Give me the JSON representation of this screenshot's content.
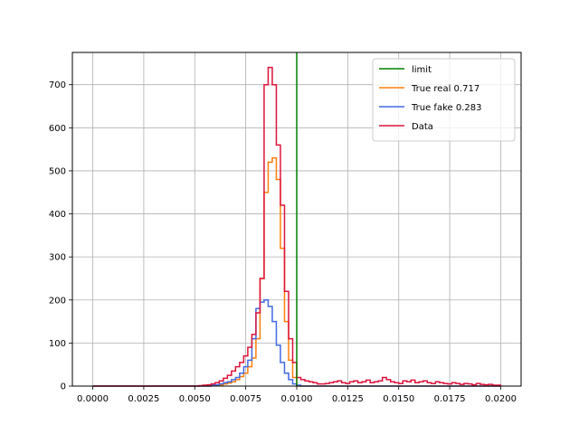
{
  "chart_data": {
    "type": "histogram",
    "title": "",
    "xlabel": "",
    "ylabel": "",
    "xlim": [
      -0.001,
      0.021
    ],
    "ylim": [
      0,
      775
    ],
    "grid": true,
    "legend_position": "top-right",
    "x_ticks": [
      0.0,
      0.0025,
      0.005,
      0.0075,
      0.01,
      0.0125,
      0.015,
      0.0175,
      0.02
    ],
    "x_tick_labels": [
      "0.0000",
      "0.0025",
      "0.0050",
      "0.0075",
      "0.0100",
      "0.0125",
      "0.0150",
      "0.0175",
      "0.0200"
    ],
    "y_ticks": [
      0,
      100,
      200,
      300,
      400,
      500,
      600,
      700
    ],
    "y_tick_labels": [
      "0",
      "100",
      "200",
      "300",
      "400",
      "500",
      "600",
      "700"
    ],
    "bins": {
      "start": 0.0,
      "end": 0.02,
      "count": 100
    },
    "vline": {
      "name": "limit",
      "x": 0.01,
      "color": "#008000"
    },
    "series": [
      {
        "name": "True real 0.717",
        "color": "#ff7f0e",
        "counts": [
          0,
          0,
          0,
          0,
          0,
          0,
          0,
          0,
          0,
          0,
          0,
          0,
          0,
          0,
          0,
          0,
          0,
          0,
          0,
          0,
          0,
          0,
          0,
          0,
          0,
          0,
          0,
          0,
          0,
          1,
          2,
          3,
          5,
          7,
          10,
          15,
          22,
          30,
          45,
          65,
          110,
          250,
          450,
          520,
          530,
          480,
          320,
          150,
          60,
          20,
          0,
          0,
          0,
          0,
          0,
          0,
          0,
          0,
          0,
          0,
          0,
          0,
          0,
          0,
          0,
          0,
          0,
          0,
          0,
          0,
          0,
          0,
          0,
          0,
          0,
          0,
          0,
          0,
          0,
          0,
          0,
          0,
          0,
          0,
          0,
          0,
          0,
          0,
          0,
          0,
          0,
          0,
          0,
          0,
          0,
          0,
          0,
          0,
          0,
          0
        ]
      },
      {
        "name": "True fake 0.283",
        "color": "#4169e1",
        "counts": [
          0,
          0,
          0,
          0,
          0,
          0,
          0,
          0,
          0,
          0,
          0,
          0,
          0,
          0,
          0,
          0,
          0,
          0,
          0,
          0,
          0,
          0,
          0,
          0,
          0,
          0,
          0,
          0,
          0,
          2,
          3,
          5,
          8,
          10,
          15,
          20,
          30,
          45,
          60,
          110,
          180,
          195,
          200,
          185,
          150,
          95,
          55,
          30,
          15,
          5,
          2,
          0,
          0,
          0,
          0,
          0,
          0,
          0,
          0,
          0,
          0,
          0,
          0,
          0,
          0,
          0,
          0,
          0,
          0,
          0,
          0,
          0,
          0,
          0,
          0,
          0,
          0,
          0,
          0,
          0,
          0,
          0,
          0,
          0,
          0,
          0,
          0,
          0,
          0,
          0,
          0,
          0,
          0,
          0,
          0,
          0,
          0,
          0,
          0,
          0
        ]
      },
      {
        "name": "Data",
        "color": "#dc143c",
        "counts": [
          0,
          0,
          0,
          0,
          0,
          0,
          0,
          0,
          0,
          0,
          0,
          0,
          0,
          0,
          0,
          0,
          0,
          0,
          0,
          0,
          0,
          0,
          0,
          0,
          0,
          0,
          1,
          2,
          3,
          5,
          8,
          12,
          18,
          25,
          35,
          45,
          55,
          70,
          90,
          120,
          170,
          250,
          700,
          740,
          700,
          560,
          420,
          220,
          110,
          55,
          20,
          15,
          12,
          10,
          8,
          5,
          5,
          6,
          8,
          10,
          12,
          8,
          6,
          10,
          12,
          8,
          10,
          14,
          8,
          10,
          12,
          20,
          15,
          10,
          8,
          6,
          12,
          10,
          14,
          8,
          10,
          12,
          8,
          6,
          10,
          8,
          6,
          5,
          8,
          6,
          4,
          6,
          5,
          3,
          6,
          4,
          3,
          4,
          2,
          2
        ]
      }
    ]
  }
}
